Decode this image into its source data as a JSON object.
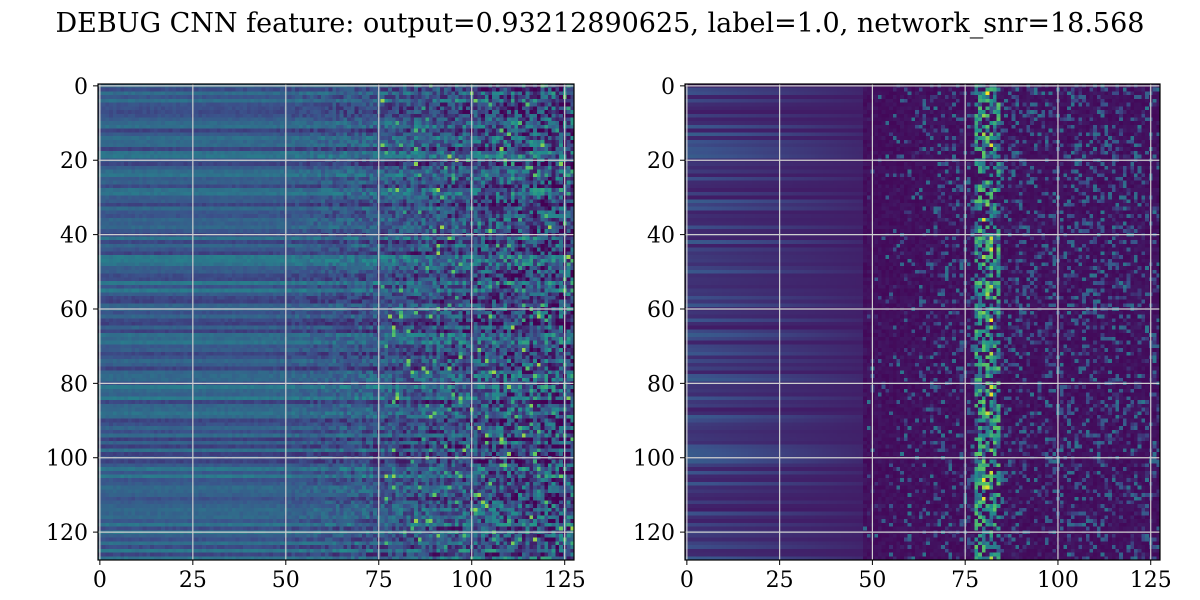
{
  "figure": {
    "title": "DEBUG CNN feature: output=0.93212890625, label=1.0, network_snr=18.568"
  },
  "colormap": {
    "name": "viridis",
    "stops": [
      "#440154",
      "#3b528b",
      "#21918c",
      "#5ec962",
      "#fde725"
    ]
  },
  "chart_data": [
    {
      "type": "heatmap",
      "title": "",
      "xlabel": "",
      "ylabel": "",
      "shape": [
        128,
        128
      ],
      "xlim": [
        -0.5,
        127.5
      ],
      "ylim": [
        127.5,
        -0.5
      ],
      "x_ticks": [
        0,
        25,
        50,
        75,
        100,
        125
      ],
      "y_ticks": [
        0,
        20,
        40,
        60,
        80,
        100,
        120
      ],
      "x_tick_labels": [
        "0",
        "25",
        "50",
        "75",
        "100",
        "125"
      ],
      "y_tick_labels": [
        "0",
        "20",
        "40",
        "60",
        "80",
        "100",
        "120"
      ],
      "grid": true,
      "value_range": [
        0,
        1
      ],
      "description_of_values": {
        "background_level": 0.3,
        "noise_region_start_col": 75,
        "structure": "row-wise horizontal bands; noisy speckle increasing in columns 75-127"
      }
    },
    {
      "type": "heatmap",
      "title": "",
      "xlabel": "",
      "ylabel": "",
      "shape": [
        128,
        128
      ],
      "xlim": [
        -0.5,
        127.5
      ],
      "ylim": [
        127.5,
        -0.5
      ],
      "x_ticks": [
        0,
        25,
        50,
        75,
        100,
        125
      ],
      "y_ticks": [
        0,
        20,
        40,
        60,
        80,
        100,
        120
      ],
      "x_tick_labels": [
        "0",
        "25",
        "50",
        "75",
        "100",
        "125"
      ],
      "y_tick_labels": [
        "0",
        "20",
        "40",
        "60",
        "80",
        "100",
        "120"
      ],
      "grid": true,
      "value_range": [
        0,
        1
      ],
      "description_of_values": {
        "background_level": 0.05,
        "noise_region_start_col": 50,
        "hot_column": 81,
        "structure": "dark background; speckle beyond column 50; bright streak near column 81"
      }
    }
  ]
}
